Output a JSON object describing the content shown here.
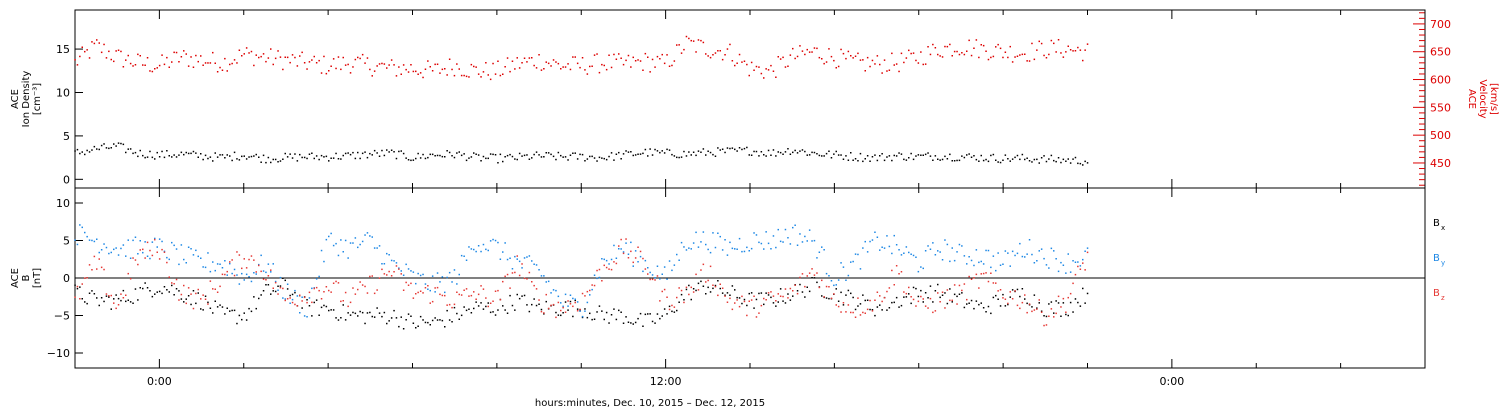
{
  "chart_data": [
    {
      "panel": "top",
      "type": "scatter",
      "left_axis": {
        "label_lines": [
          "ACE",
          "Ion Density",
          "[cm⁻³]"
        ],
        "color": "#000000",
        "ticks": [
          0,
          5,
          10,
          15
        ],
        "tick_labels": [
          "0",
          "5",
          "10",
          "15"
        ],
        "ylim": [
          -1,
          19.5
        ]
      },
      "right_axis": {
        "label_lines": [
          "ACE",
          "Velocity",
          "[km/s]"
        ],
        "color": "#dd0000",
        "ticks": [
          450,
          500,
          550,
          600,
          650,
          700
        ],
        "tick_labels": [
          "450",
          "500",
          "550",
          "600",
          "650",
          "700"
        ],
        "ylim": [
          405,
          725
        ]
      },
      "series": [
        {
          "color": "#dd0000",
          "axis": "right",
          "x": [
            -2.0,
            -1.5,
            -1.0,
            -0.5,
            0.0,
            0.5,
            1.0,
            1.5,
            2.0,
            2.5,
            3.0,
            3.5,
            4.0,
            4.5,
            5.0,
            5.5,
            6.0,
            6.5,
            7.0,
            7.5,
            8.0,
            8.5,
            9.0,
            9.5,
            10.0,
            10.5,
            11.0,
            11.5,
            12.0,
            12.5,
            13.0,
            13.5,
            14.0,
            14.5,
            15.0,
            15.5,
            16.0,
            16.5,
            17.0,
            17.5,
            18.0,
            18.5,
            19.0,
            19.5,
            20.0,
            20.5,
            21.0,
            21.5,
            22.0
          ],
          "values": [
            630,
            660,
            640,
            630,
            625,
            640,
            635,
            630,
            645,
            640,
            635,
            630,
            625,
            630,
            625,
            620,
            620,
            615,
            625,
            615,
            615,
            628,
            635,
            625,
            625,
            630,
            628,
            632,
            628,
            665,
            655,
            650,
            620,
            615,
            640,
            650,
            640,
            630,
            628,
            630,
            640,
            655,
            660,
            655,
            650,
            648,
            655,
            655,
            650
          ],
          "scatter": 18
        },
        {
          "color": "#000000",
          "axis": "left",
          "x": [
            -2.0,
            -1.5,
            -1.0,
            -0.5,
            0.0,
            0.5,
            1.0,
            1.5,
            2.0,
            2.5,
            3.0,
            3.5,
            4.0,
            4.5,
            5.0,
            5.5,
            6.0,
            6.5,
            7.0,
            7.5,
            8.0,
            8.5,
            9.0,
            9.5,
            10.0,
            10.5,
            11.0,
            11.5,
            12.0,
            12.5,
            13.0,
            13.5,
            14.0,
            14.5,
            15.0,
            15.5,
            16.0,
            16.5,
            17.0,
            17.5,
            18.0,
            18.5,
            19.0,
            19.5,
            20.0,
            20.5,
            21.0,
            21.5,
            22.0
          ],
          "values": [
            3.0,
            3.5,
            3.8,
            3.0,
            2.8,
            2.9,
            2.7,
            2.5,
            2.8,
            2.4,
            2.5,
            2.6,
            2.6,
            2.7,
            2.9,
            3.0,
            2.5,
            2.8,
            2.9,
            2.5,
            2.4,
            2.5,
            2.7,
            2.6,
            2.6,
            2.5,
            2.8,
            3.1,
            3.0,
            2.9,
            3.1,
            3.2,
            3.3,
            3.0,
            3.4,
            3.0,
            2.8,
            2.6,
            2.5,
            2.7,
            2.6,
            2.7,
            2.6,
            2.5,
            2.4,
            2.4,
            2.3,
            2.2,
            2.1
          ],
          "scatter": 0.5
        }
      ]
    },
    {
      "panel": "bottom",
      "type": "scatter",
      "left_axis": {
        "label_lines": [
          "ACE",
          "B",
          "[nT]"
        ],
        "color": "#000000",
        "ticks": [
          -10,
          -5,
          0,
          5,
          10
        ],
        "tick_labels": [
          "−10",
          "−5",
          "0",
          "5",
          "10"
        ],
        "ylim": [
          -12,
          12
        ]
      },
      "zero_line": true,
      "series": [
        {
          "name": "Bx",
          "color": "#000000",
          "x": [
            -2.0,
            -1.5,
            -1.0,
            -0.5,
            0.0,
            0.5,
            1.0,
            1.5,
            2.0,
            2.5,
            3.0,
            3.5,
            4.0,
            4.5,
            5.0,
            5.5,
            6.0,
            6.5,
            7.0,
            7.5,
            8.0,
            8.5,
            9.0,
            9.5,
            10.0,
            10.5,
            11.0,
            11.5,
            12.0,
            12.5,
            13.0,
            13.5,
            14.0,
            14.5,
            15.0,
            15.5,
            16.0,
            16.5,
            17.0,
            17.5,
            18.0,
            18.5,
            19.0,
            19.5,
            20.0,
            20.5,
            21.0,
            21.5,
            22.0
          ],
          "values": [
            -2,
            -3,
            -3,
            -2,
            -1,
            -2,
            -3,
            -5,
            -5,
            -2,
            -1,
            -4,
            -4,
            -5,
            -5,
            -5,
            -6,
            -6,
            -5,
            -4,
            -4,
            -3,
            -4,
            -4,
            -4,
            -5,
            -5,
            -6,
            -5,
            -2,
            -1,
            -2,
            -3,
            -3,
            -2,
            -1,
            -2,
            -3,
            -4,
            -3,
            -2,
            -2,
            -3,
            -4,
            -3,
            -2,
            -4,
            -4,
            -2
          ],
          "scatter": 1.2
        },
        {
          "name": "By",
          "color": "#1e88e5",
          "x": [
            -2.0,
            -1.5,
            -1.0,
            -0.5,
            0.0,
            0.5,
            1.0,
            1.5,
            2.0,
            2.5,
            3.0,
            3.5,
            4.0,
            4.5,
            5.0,
            5.5,
            6.0,
            6.5,
            7.0,
            7.5,
            8.0,
            8.5,
            9.0,
            9.5,
            10.0,
            10.5,
            11.0,
            11.5,
            12.0,
            12.5,
            13.0,
            13.5,
            14.0,
            14.5,
            15.0,
            15.5,
            16.0,
            16.5,
            17.0,
            17.5,
            18.0,
            18.5,
            19.0,
            19.5,
            20.0,
            20.5,
            21.0,
            21.5,
            22.0
          ],
          "values": [
            6,
            5,
            4,
            4,
            4,
            3,
            2,
            2,
            0,
            2,
            -2,
            -4,
            5,
            4,
            5,
            2,
            0,
            -1,
            0,
            5,
            4,
            2,
            1,
            -3,
            -4,
            2,
            4,
            2,
            0,
            5,
            5,
            4,
            5,
            5,
            6,
            5,
            0,
            2,
            5,
            4,
            2,
            4,
            3,
            3,
            2,
            4,
            3,
            2,
            3
          ],
          "scatter": 1.5
        },
        {
          "name": "Bz",
          "color": "#e53935",
          "x": [
            -2.0,
            -1.5,
            -1.0,
            -0.5,
            0.0,
            0.5,
            1.0,
            1.5,
            2.0,
            2.5,
            3.0,
            3.5,
            4.0,
            4.5,
            5.0,
            5.5,
            6.0,
            6.5,
            7.0,
            7.5,
            8.0,
            8.5,
            9.0,
            9.5,
            10.0,
            10.5,
            11.0,
            11.5,
            12.0,
            12.5,
            13.0,
            13.5,
            14.0,
            14.5,
            15.0,
            15.5,
            16.0,
            16.5,
            17.0,
            17.5,
            18.0,
            18.5,
            19.0,
            19.5,
            20.0,
            20.5,
            21.0,
            21.5,
            22.0
          ],
          "values": [
            -3,
            2,
            -4,
            3,
            4,
            -2,
            -3,
            0,
            3,
            1,
            -3,
            -2,
            -1,
            -3,
            -1,
            1,
            -2,
            -2,
            -3,
            -2,
            -3,
            2,
            -3,
            -4,
            -3,
            1,
            4,
            2,
            -3,
            -2,
            1,
            -3,
            -4,
            -3,
            -2,
            1,
            -3,
            -4,
            -3,
            1,
            -4,
            -3,
            -2,
            0,
            -2,
            -3,
            -5,
            -3,
            3
          ],
          "scatter": 1.5
        }
      ],
      "legend": [
        {
          "label": "B",
          "sub": "x",
          "color": "#000000"
        },
        {
          "label": "B",
          "sub": "y",
          "color": "#1e88e5"
        },
        {
          "label": "B",
          "sub": "z",
          "color": "#e53935"
        }
      ]
    }
  ],
  "x_axis": {
    "xlim": [
      -2.0,
      30.0
    ],
    "major_ticks": [
      0,
      12,
      24
    ],
    "tick_labels": [
      "0:00",
      "12:00",
      "0:00"
    ],
    "minor_step": 2,
    "label": "hours:minutes, Dec. 10, 2015 – Dec. 12, 2015"
  }
}
